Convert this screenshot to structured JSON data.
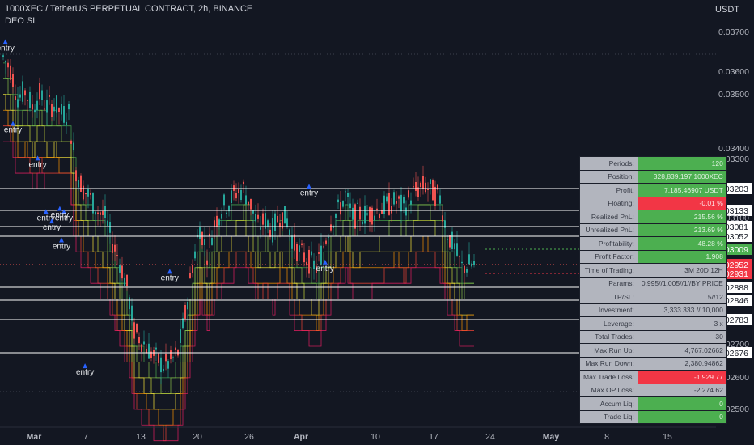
{
  "header": {
    "symbol": "1000XEC / TetherUS PERPETUAL CONTRACT, 2h, BINANCE",
    "indicator": "DEO SL",
    "currency": "USDT"
  },
  "chart_data": {
    "type": "candlestick",
    "x_ticks": [
      "Mar",
      "7",
      "13",
      "20",
      "26",
      "Apr",
      "10",
      "17",
      "24",
      "May",
      "8",
      "15"
    ],
    "y_ticks": [
      "0.03700",
      "0.03600",
      "0.03500",
      "0.03400",
      "0.03300",
      "0.03100",
      "0.02700",
      "0.02600",
      "0.02500"
    ],
    "ylim": [
      0.0245,
      0.0374
    ],
    "price_path": [
      0.0362,
      0.0358,
      0.0349,
      0.0351,
      0.0346,
      0.035,
      0.0346,
      0.0347,
      0.0344,
      0.0344,
      0.0326,
      0.032,
      0.0317,
      0.0313,
      0.0311,
      0.0303,
      0.0297,
      0.0289,
      0.0275,
      0.0272,
      0.0269,
      0.0266,
      0.0264,
      0.0265,
      0.0268,
      0.028,
      0.0296,
      0.0308,
      0.03,
      0.0309,
      0.0314,
      0.0316,
      0.0319,
      0.032,
      0.0315,
      0.0308,
      0.031,
      0.0307,
      0.0312,
      0.031,
      0.0302,
      0.0299,
      0.0297,
      0.0295,
      0.0302,
      0.031,
      0.0313,
      0.0318,
      0.0311,
      0.0312,
      0.0312,
      0.0313,
      0.0314,
      0.0315,
      0.0316,
      0.0314,
      0.0318,
      0.032,
      0.0321,
      0.0319,
      0.0317,
      0.0306,
      0.0301,
      0.0295,
      0.0296
    ],
    "entry_markers": [
      {
        "label": "entry",
        "x": 0.9,
        "y": 0.0365
      },
      {
        "label": "entry",
        "x": 4.0,
        "y": 0.0339
      },
      {
        "label": "entry",
        "x": 14.2,
        "y": 0.0328
      },
      {
        "label": "entry",
        "x": 17.6,
        "y": 0.0311
      },
      {
        "label": "entry",
        "x": 20.0,
        "y": 0.0308
      },
      {
        "label": "entry",
        "x": 25.0,
        "y": 0.0311
      },
      {
        "label": "entry",
        "x": 23.3,
        "y": 0.0312
      },
      {
        "label": "entry",
        "x": 24.0,
        "y": 0.0302
      },
      {
        "label": "entry",
        "x": 33.7,
        "y": 0.0262
      },
      {
        "label": "entry",
        "x": 68.6,
        "y": 0.0292
      },
      {
        "label": "entry",
        "x": 126.0,
        "y": 0.0319
      },
      {
        "label": "entry",
        "x": 132.6,
        "y": 0.0295
      }
    ],
    "level_lines": [
      {
        "value": 0.03203,
        "label": "0.03203",
        "style": "white"
      },
      {
        "value": 0.03133,
        "label": "0.03133",
        "style": "white"
      },
      {
        "value": 0.03081,
        "label": "0.03081",
        "style": "white"
      },
      {
        "value": 0.03052,
        "label": "0.03052",
        "style": "white"
      },
      {
        "value": 0.03009,
        "label": "0.03009",
        "style": "green-dotted"
      },
      {
        "value": 0.02952,
        "label": "0.02952",
        "style": "red"
      },
      {
        "value": 0.02931,
        "label": "0.02931",
        "style": "red-dotted"
      },
      {
        "value": 0.02888,
        "label": "0.02888",
        "style": "white"
      },
      {
        "value": 0.02846,
        "label": "0.02846",
        "style": "white"
      },
      {
        "value": 0.02783,
        "label": "0.02783",
        "style": "white"
      },
      {
        "value": 0.02676,
        "label": "0.02676",
        "style": "white"
      }
    ],
    "colors": {
      "background": "#131722",
      "up": "#26a69a",
      "down": "#ef5350",
      "green_label": "#4caf50",
      "red_label": "#f23645",
      "grid_dotted": "#6a6d78"
    }
  },
  "stats_table": [
    {
      "label": "Periods:",
      "value": "120",
      "style": "green"
    },
    {
      "label": "Position:",
      "value": "328,839.197 1000XEC",
      "style": "green"
    },
    {
      "label": "Profit:",
      "value": "7,185.46907 USDT",
      "style": "green"
    },
    {
      "label": "Floating:",
      "value": "-0.01 %",
      "style": "red"
    },
    {
      "label": "Realized PnL:",
      "value": "215.56 %",
      "style": "green"
    },
    {
      "label": "Unrealized PnL:",
      "value": "213.69 %",
      "style": "green"
    },
    {
      "label": "Profitability:",
      "value": "48.28 %",
      "style": "green"
    },
    {
      "label": "Profit Factor:",
      "value": "1.908",
      "style": "green"
    },
    {
      "label": "Time of Trading:",
      "value": "3M 20D 12H",
      "style": "grey"
    },
    {
      "label": "Params:",
      "value": "0.995//1.005//1//BY PRICE",
      "style": "grey"
    },
    {
      "label": "TP/SL:",
      "value": "5//12",
      "style": "grey"
    },
    {
      "label": "Investment:",
      "value": "3,333.333 // 10,000",
      "style": "grey"
    },
    {
      "label": "Leverage:",
      "value": "3 x",
      "style": "grey"
    },
    {
      "label": "Total Trades:",
      "value": "30",
      "style": "grey"
    },
    {
      "label": "Max Run Up:",
      "value": "4,767.02662",
      "style": "grey"
    },
    {
      "label": "Max Run Down:",
      "value": "2,380.94862",
      "style": "grey"
    },
    {
      "label": "Max Trade Loss:",
      "value": "-1,929.77",
      "style": "red"
    },
    {
      "label": "Max OP Loss:",
      "value": "-2,274.62",
      "style": "grey"
    },
    {
      "label": "Accum Liq:",
      "value": "0",
      "style": "green"
    },
    {
      "label": "Trade Liq:",
      "value": "0",
      "style": "green"
    }
  ]
}
